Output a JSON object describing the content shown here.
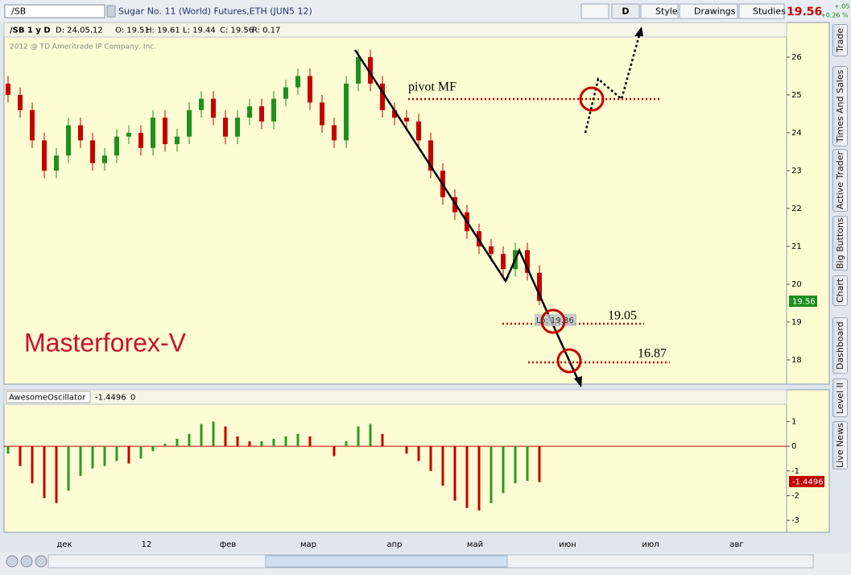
{
  "toolbar": {
    "symbol": "/SB",
    "description": "Sugar No. 11 (World)  Futures,ETH (JUN5 12)",
    "period": "D",
    "buttons": [
      "Style",
      "Drawings",
      "Studies"
    ],
    "last": "19.56",
    "change": "+.05",
    "change_pct": "+0.26 %"
  },
  "info_bar": [
    "/SB 1 y D",
    "D: 24.05.12",
    "O: 19.51",
    "H: 19.61",
    "L: 19.44",
    "C: 19.56",
    "R: 0.17"
  ],
  "copyright": "2012 @ TD Ameritrade IP Company, Inc.",
  "annotations": {
    "pivot": "pivot MF",
    "level1": "19.05",
    "level2": "16.87",
    "watermark": "Masterforex-V",
    "low_tag": "Lo: 19.36",
    "price_tag": "19.56"
  },
  "chart_data": [
    {
      "type": "candlestick",
      "open": [
        25.3,
        25.0,
        24.6,
        23.8,
        23.0,
        23.4,
        24.2,
        23.8,
        23.2,
        23.4,
        23.9,
        24.0,
        23.6,
        24.4,
        23.7,
        23.9,
        24.6,
        24.9,
        24.4,
        23.9,
        24.4,
        24.7,
        24.3,
        24.9,
        25.2,
        25.5,
        24.8,
        24.2,
        23.8,
        25.3,
        26.0,
        25.3,
        24.6,
        24.4,
        24.3,
        23.8,
        23.0,
        22.3,
        21.9,
        21.4,
        21.0,
        20.8,
        20.4,
        20.9,
        20.3
      ],
      "high": [
        25.5,
        25.2,
        24.8,
        24.0,
        23.6,
        24.4,
        24.4,
        24.0,
        23.6,
        24.1,
        24.2,
        24.2,
        24.6,
        24.6,
        24.1,
        24.8,
        25.1,
        25.1,
        24.6,
        24.6,
        24.9,
        24.9,
        25.1,
        25.4,
        25.7,
        25.7,
        25.0,
        24.4,
        25.5,
        26.2,
        26.2,
        25.5,
        24.8,
        24.6,
        24.5,
        24.0,
        23.2,
        22.5,
        22.1,
        21.6,
        21.2,
        21.0,
        21.1,
        21.1,
        20.5
      ],
      "low": [
        24.8,
        24.4,
        23.6,
        22.8,
        22.8,
        23.2,
        23.6,
        23.0,
        23.0,
        23.2,
        23.7,
        23.4,
        23.4,
        23.5,
        23.5,
        23.7,
        24.4,
        24.2,
        23.7,
        23.7,
        24.2,
        24.1,
        24.1,
        24.7,
        25.0,
        24.6,
        24.0,
        23.6,
        23.6,
        25.1,
        25.1,
        24.4,
        24.2,
        24.1,
        23.6,
        22.8,
        22.1,
        21.7,
        21.2,
        20.8,
        20.6,
        20.2,
        20.2,
        20.1,
        19.44
      ],
      "close": [
        25.0,
        24.6,
        23.8,
        23.0,
        23.4,
        24.2,
        23.8,
        23.2,
        23.4,
        23.9,
        24.0,
        23.6,
        24.4,
        23.7,
        23.9,
        24.6,
        24.9,
        24.4,
        23.9,
        24.4,
        24.7,
        24.3,
        24.9,
        25.2,
        25.5,
        24.8,
        24.2,
        23.8,
        25.3,
        26.0,
        25.3,
        24.6,
        24.4,
        24.3,
        23.8,
        23.0,
        22.3,
        21.9,
        21.4,
        21.0,
        20.8,
        20.4,
        20.9,
        20.3,
        19.56
      ],
      "up_color": "#1f8f1f",
      "down_color": "#c40000",
      "ylim": [
        17.36,
        26.53
      ],
      "yticks": [
        18,
        19,
        20,
        21,
        22,
        23,
        24,
        25,
        26
      ]
    },
    {
      "type": "oscillator",
      "title": "AwesomeOscillator",
      "last_label": "-1.4496",
      "zero_label": "0",
      "values": [
        -0.3,
        -0.8,
        -1.5,
        -2.1,
        -2.3,
        -1.8,
        -1.2,
        -0.9,
        -0.8,
        -0.6,
        -0.7,
        -0.5,
        -0.2,
        0.1,
        0.3,
        0.5,
        0.9,
        1.0,
        0.8,
        0.4,
        0.2,
        0.2,
        0.3,
        0.4,
        0.5,
        0.4,
        0.0,
        -0.4,
        0.2,
        0.8,
        0.9,
        0.5,
        0.0,
        -0.3,
        -0.6,
        -1.0,
        -1.6,
        -2.2,
        -2.5,
        -2.6,
        -2.3,
        -1.9,
        -1.5,
        -1.4,
        -1.4496
      ],
      "up_color": "#2a9a2a",
      "down_color": "#c40000",
      "ylim": [
        -3.45,
        1.6
      ],
      "yticks": [
        -3,
        -2,
        -1,
        0,
        1
      ]
    }
  ],
  "time_axis": [
    "дек",
    "12",
    "фев",
    "мар",
    "апр",
    "май",
    "июн",
    "июл",
    "авг"
  ],
  "side_tabs": [
    "Trade",
    "Times And Sales",
    "Active Trader",
    "Big Buttons",
    "Chart",
    "Dashboard",
    "Level II",
    "Live News"
  ]
}
